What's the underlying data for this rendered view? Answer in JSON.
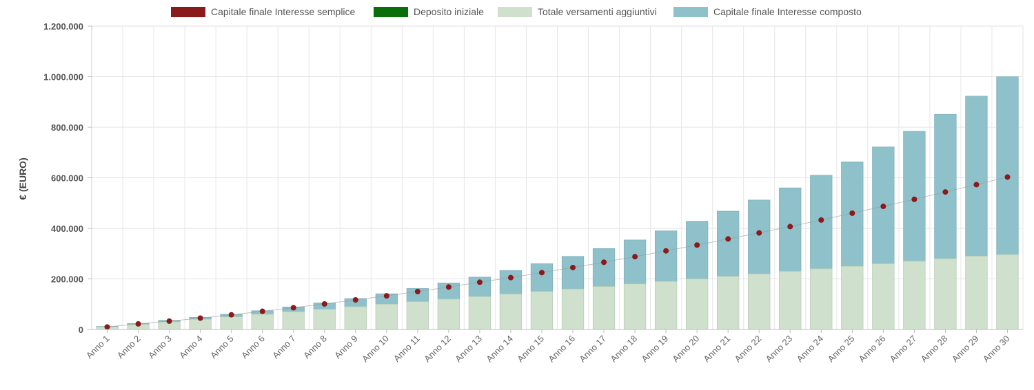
{
  "chart_data": {
    "type": "bar",
    "stacked": true,
    "ylabel": "€ (EURO)",
    "ylim": [
      0,
      1200000
    ],
    "yticks": [
      {
        "value": 0,
        "label": "0"
      },
      {
        "value": 200000,
        "label": "200.000"
      },
      {
        "value": 400000,
        "label": "400.000"
      },
      {
        "value": 600000,
        "label": "600.000"
      },
      {
        "value": 800000,
        "label": "800.000"
      },
      {
        "value": 1000000,
        "label": "1.000.000"
      },
      {
        "value": 1200000,
        "label": "1.200.000"
      }
    ],
    "grid": true,
    "legend_position": "top",
    "categories": [
      "Anno 1",
      "Anno 2",
      "Anno 3",
      "Anno 4",
      "Anno 5",
      "Anno 6",
      "Anno 7",
      "Anno 8",
      "Anno 9",
      "Anno 10",
      "Anno 11",
      "Anno 12",
      "Anno 13",
      "Anno 14",
      "Anno 15",
      "Anno 16",
      "Anno 17",
      "Anno 18",
      "Anno 19",
      "Anno 20",
      "Anno 21",
      "Anno 22",
      "Anno 23",
      "Anno 24",
      "Anno 25",
      "Anno 26",
      "Anno 27",
      "Anno 28",
      "Anno 29",
      "Anno 30"
    ],
    "legend": [
      {
        "name": "Capitale finale Interesse semplice",
        "color": "#8b1a1a"
      },
      {
        "name": "Deposito iniziale",
        "color": "#0a6e0a"
      },
      {
        "name": "Totale versamenti aggiuntivi",
        "color": "#cfe1cc"
      },
      {
        "name": "Capitale finale Interesse composto",
        "color": "#8fc1cb"
      }
    ],
    "series": [
      {
        "name": "Totale versamenti aggiuntivi",
        "kind": "bar",
        "color": "#cfe1cc",
        "values": [
          10000,
          20000,
          30000,
          40000,
          50000,
          60000,
          70000,
          80000,
          90000,
          100000,
          110000,
          120000,
          130000,
          140000,
          150000,
          160000,
          170000,
          180000,
          190000,
          200000,
          210000,
          220000,
          230000,
          240000,
          250000,
          260000,
          270000,
          280000,
          290000,
          296000
        ]
      },
      {
        "name": "Capitale finale Interesse composto",
        "kind": "bar",
        "color": "#8fc1cb",
        "values": [
          12000,
          24000,
          36000,
          48000,
          60000,
          74000,
          89000,
          105000,
          122000,
          141000,
          162000,
          184000,
          207000,
          233000,
          260000,
          289000,
          320000,
          354000,
          390000,
          428000,
          468000,
          512000,
          560000,
          610000,
          663000,
          722000,
          784000,
          851000,
          923000,
          1000000
        ]
      },
      {
        "name": "Capitale finale Interesse semplice",
        "kind": "line",
        "color": "#8b1a1a",
        "values": [
          10000,
          22000,
          33000,
          45000,
          58000,
          72000,
          86000,
          101000,
          117000,
          133000,
          150000,
          168000,
          187000,
          205000,
          225000,
          245000,
          266000,
          288000,
          311000,
          334000,
          358000,
          382000,
          407000,
          433000,
          460000,
          487000,
          515000,
          544000,
          573000,
          603000
        ]
      }
    ]
  }
}
